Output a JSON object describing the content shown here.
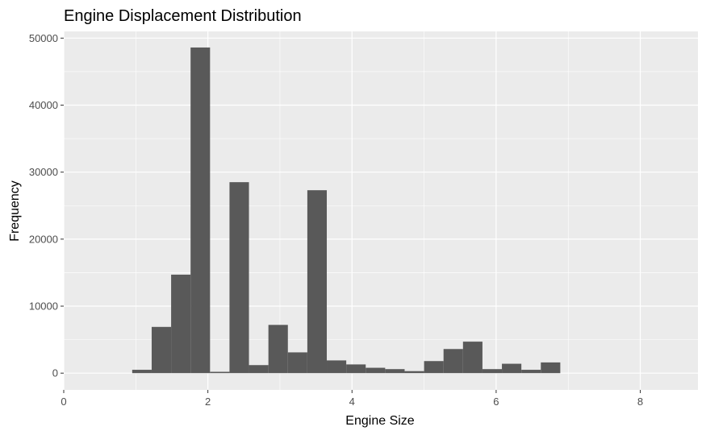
{
  "chart_data": {
    "type": "bar",
    "title": "Engine Displacement Distribution",
    "xlabel": "Engine Size",
    "ylabel": "Frequency",
    "xlim": [
      0,
      8.8
    ],
    "ylim": [
      -2500,
      51000
    ],
    "x_ticks": [
      "0",
      "2",
      "4",
      "6",
      "8"
    ],
    "y_ticks": [
      "0",
      "10000",
      "20000",
      "30000",
      "40000",
      "50000"
    ],
    "bin_width": 0.27,
    "grid": true,
    "bins": [
      {
        "x0": 0.95,
        "x1": 1.22,
        "value": 500
      },
      {
        "x0": 1.22,
        "x1": 1.49,
        "value": 6900
      },
      {
        "x0": 1.49,
        "x1": 1.76,
        "value": 14700
      },
      {
        "x0": 1.76,
        "x1": 2.03,
        "value": 48600
      },
      {
        "x0": 2.03,
        "x1": 2.3,
        "value": 200
      },
      {
        "x0": 2.3,
        "x1": 2.57,
        "value": 28500
      },
      {
        "x0": 2.57,
        "x1": 2.84,
        "value": 1200
      },
      {
        "x0": 2.84,
        "x1": 3.11,
        "value": 7200
      },
      {
        "x0": 3.11,
        "x1": 3.38,
        "value": 3100
      },
      {
        "x0": 3.38,
        "x1": 3.65,
        "value": 27300
      },
      {
        "x0": 3.65,
        "x1": 3.92,
        "value": 1900
      },
      {
        "x0": 3.92,
        "x1": 4.19,
        "value": 1300
      },
      {
        "x0": 4.19,
        "x1": 4.46,
        "value": 800
      },
      {
        "x0": 4.46,
        "x1": 4.73,
        "value": 600
      },
      {
        "x0": 4.73,
        "x1": 5.0,
        "value": 300
      },
      {
        "x0": 5.0,
        "x1": 5.27,
        "value": 1800
      },
      {
        "x0": 5.27,
        "x1": 5.54,
        "value": 3600
      },
      {
        "x0": 5.54,
        "x1": 5.81,
        "value": 4700
      },
      {
        "x0": 5.81,
        "x1": 6.08,
        "value": 600
      },
      {
        "x0": 6.08,
        "x1": 6.35,
        "value": 1400
      },
      {
        "x0": 6.35,
        "x1": 6.62,
        "value": 500
      },
      {
        "x0": 6.62,
        "x1": 6.89,
        "value": 1600
      }
    ],
    "colors": {
      "panel": "#ebebeb",
      "grid_major": "#ffffff",
      "bar_fill": "#595959",
      "tick_text": "#4d4d4d"
    }
  }
}
